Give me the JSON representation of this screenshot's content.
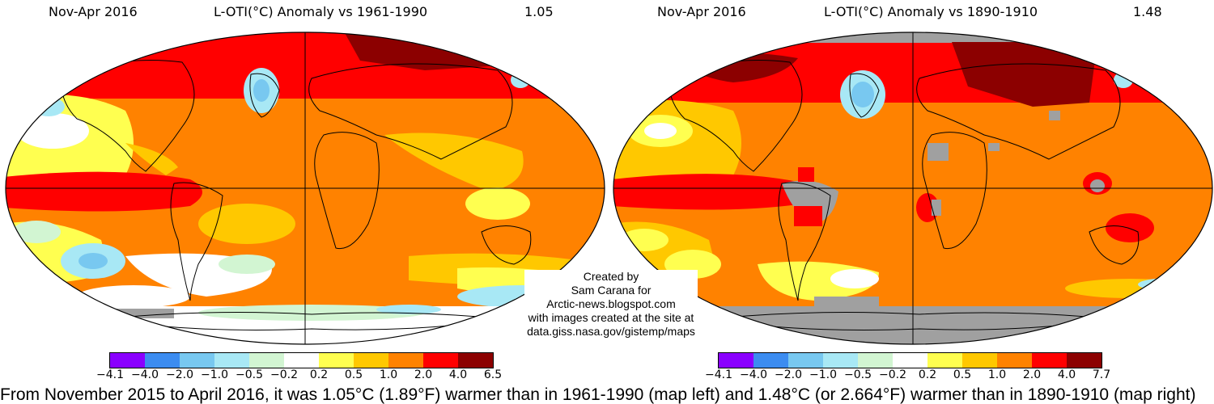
{
  "left_panel": {
    "period": "Nov-Apr 2016",
    "title": "L-OTI(°C) Anomaly vs 1961-1990",
    "global_value": "1.05"
  },
  "right_panel": {
    "period": "Nov-Apr 2016",
    "title": "L-OTI(°C) Anomaly vs 1890-1910",
    "global_value": "1.48"
  },
  "credit": {
    "line1": "Created by",
    "line2": "Sam Carana for",
    "line3": "Arctic-news.blogspot.com",
    "line4": "with images created at the site at",
    "line5": "data.giss.nasa.gov/gistemp/maps"
  },
  "legend_colors": [
    "#8a00ff",
    "#3c8cf0",
    "#78c8f0",
    "#a8e8f5",
    "#d2f5d2",
    "#ffffff",
    "#ffff50",
    "#ffc800",
    "#ff8200",
    "#ff0000",
    "#8c0000"
  ],
  "legend_left": [
    "−4.1",
    "−4.0",
    "−2.0",
    "−1.0",
    "−0.5",
    "−0.2",
    "0.2",
    "0.5",
    "1.0",
    "2.0",
    "4.0",
    "6.5"
  ],
  "legend_right": [
    "−4.1",
    "−4.0",
    "−2.0",
    "−1.0",
    "−0.5",
    "−0.2",
    "0.2",
    "0.5",
    "1.0",
    "2.0",
    "4.0",
    "7.7"
  ],
  "caption": "From November 2015 to April 2016, it was 1.05°C (1.89°F) warmer than in 1961-1990 (map left) and 1.48°C (or 2.664°F) warmer than in 1890-1910 (map right)"
}
